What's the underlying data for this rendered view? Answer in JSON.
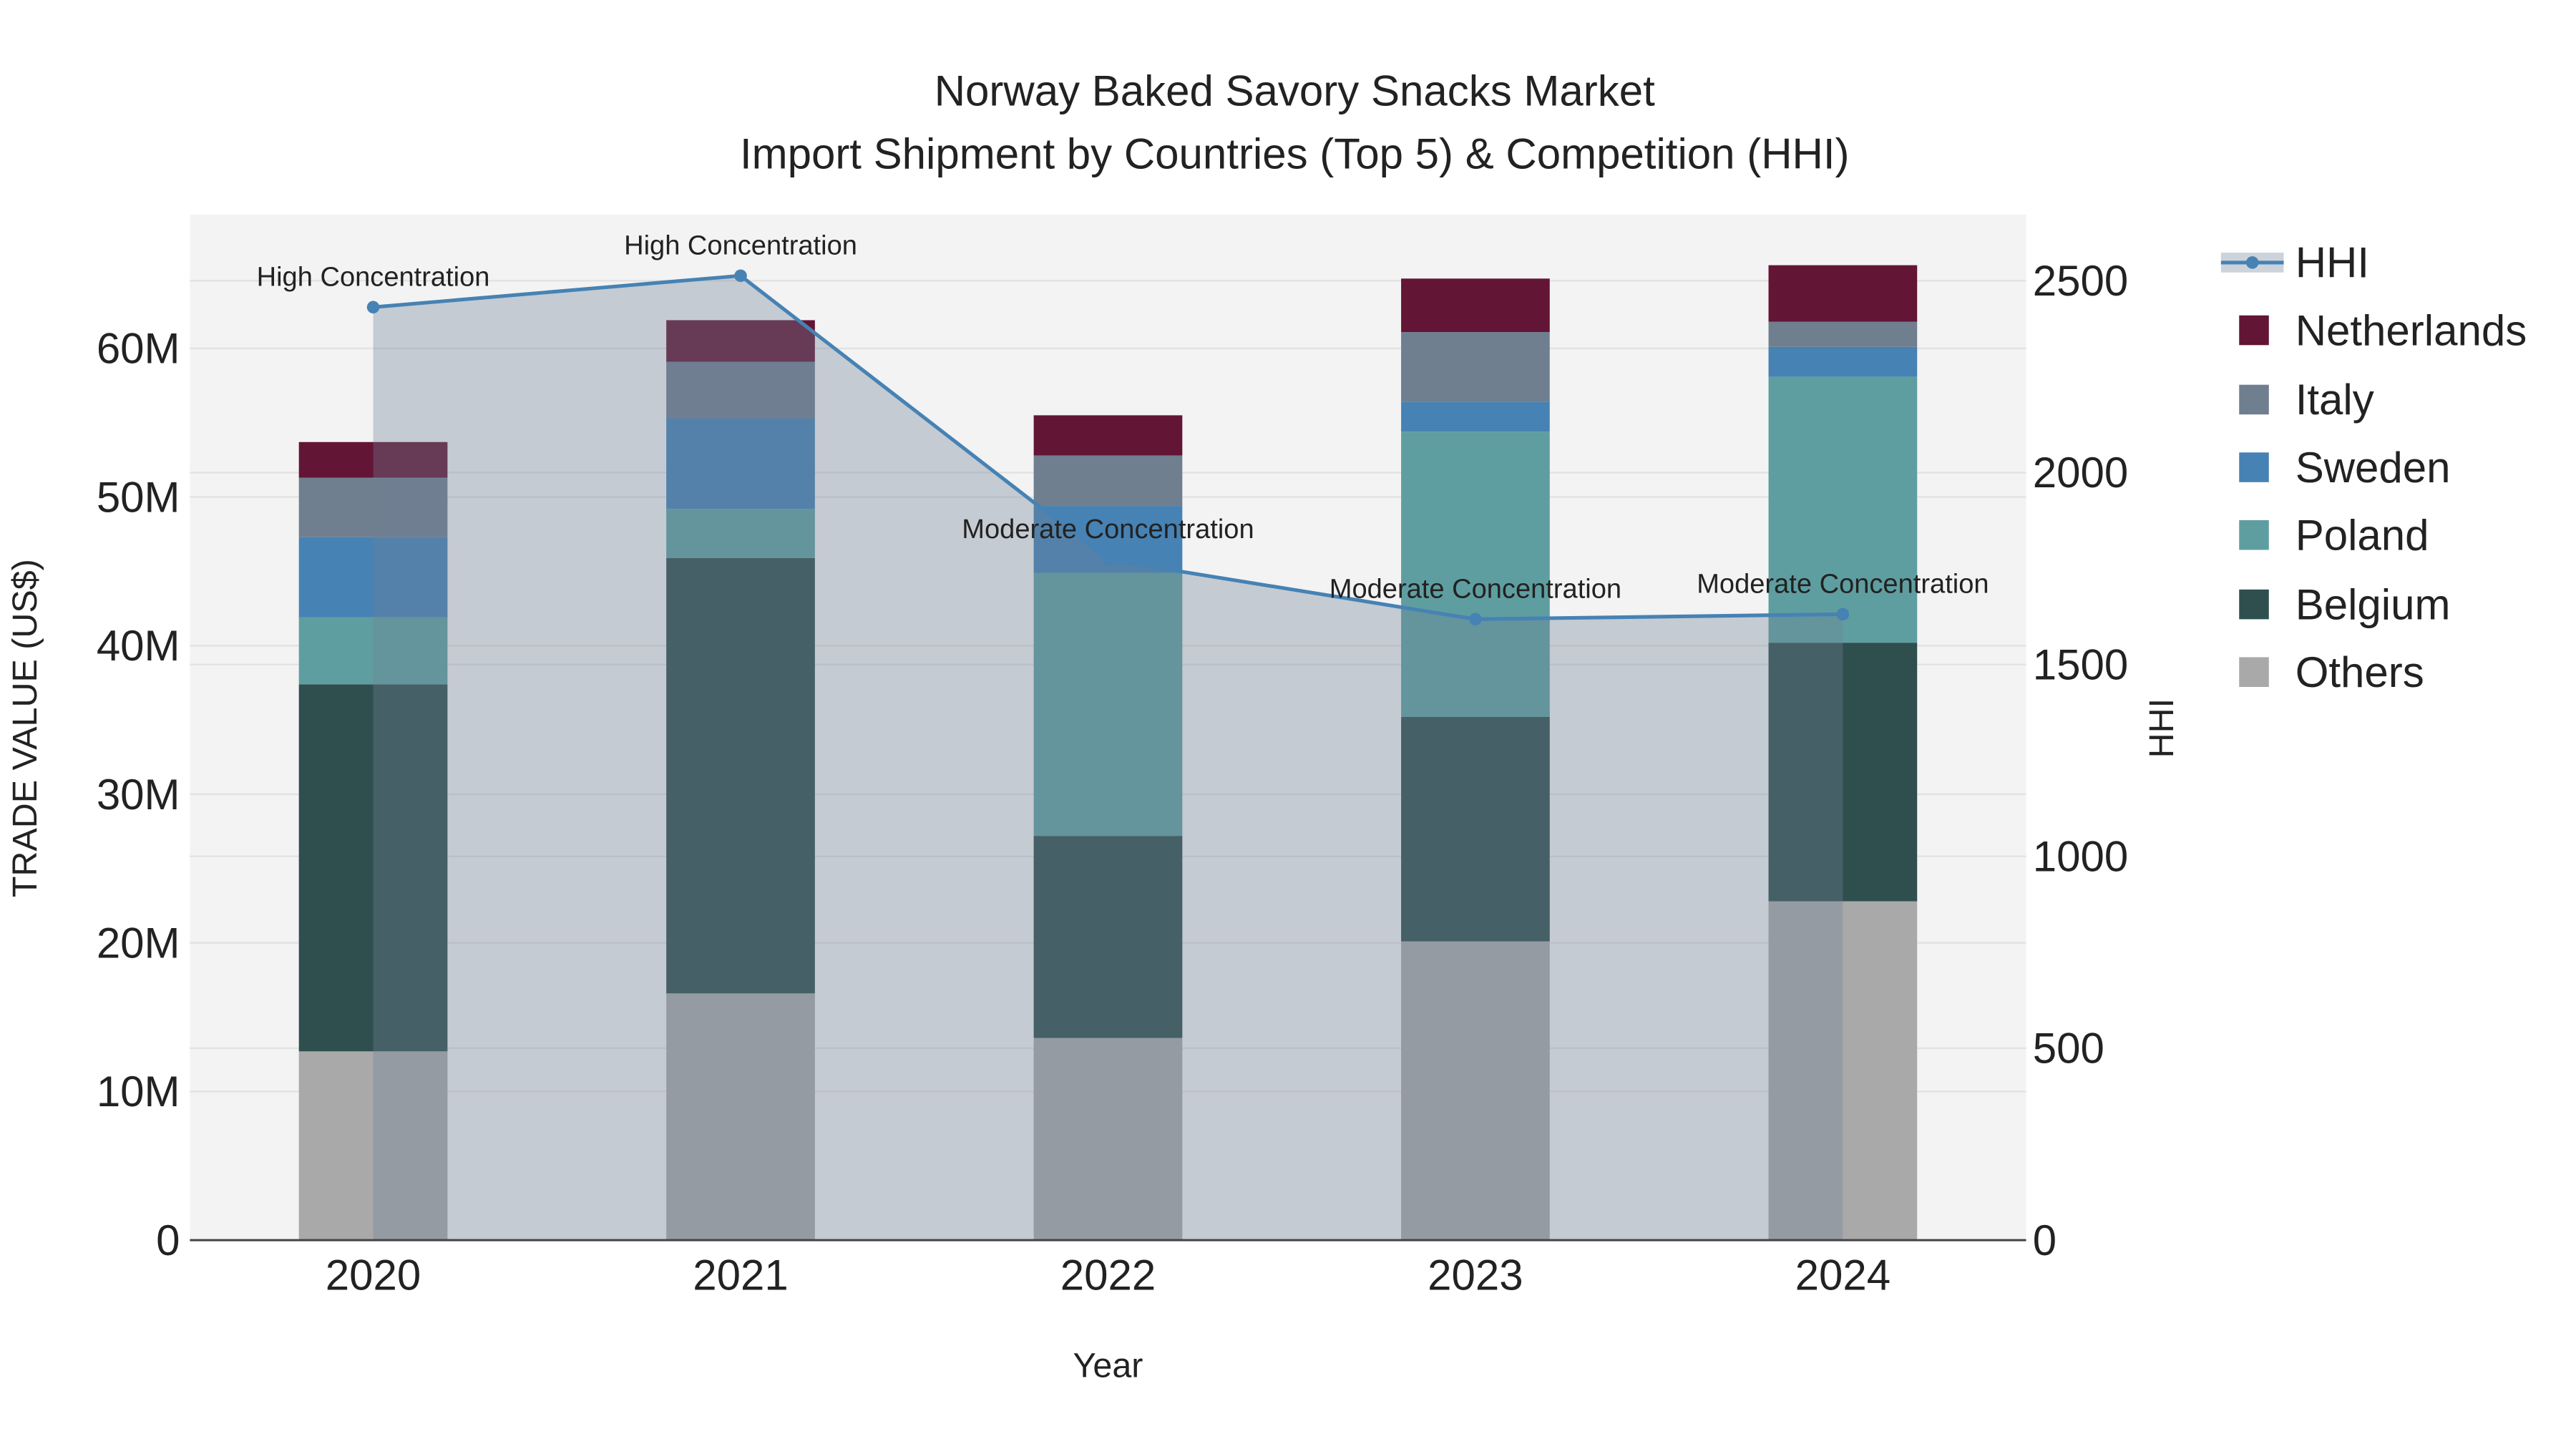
{
  "chart_data": {
    "type": "bar",
    "title": "Norway Baked Savory Snacks Market",
    "subtitle": "Import Shipment by Countries (Top 5) & Competition (HHI)",
    "xlabel": "Year",
    "ylabel": "TRADE VALUE (US$)",
    "y2label": "HHI",
    "categories": [
      "2020",
      "2021",
      "2022",
      "2023",
      "2024"
    ],
    "ylim": [
      0,
      69
    ],
    "y2lim": [
      0,
      2664
    ],
    "yticks": [
      {
        "v": 0,
        "label": "0"
      },
      {
        "v": 10,
        "label": "10M"
      },
      {
        "v": 20,
        "label": "20M"
      },
      {
        "v": 30,
        "label": "30M"
      },
      {
        "v": 40,
        "label": "40M"
      },
      {
        "v": 50,
        "label": "50M"
      },
      {
        "v": 60,
        "label": "60M"
      }
    ],
    "y2ticks": [
      {
        "v": 0,
        "label": "0"
      },
      {
        "v": 500,
        "label": "500"
      },
      {
        "v": 1000,
        "label": "1000"
      },
      {
        "v": 1500,
        "label": "1500"
      },
      {
        "v": 2000,
        "label": "2000"
      },
      {
        "v": 2500,
        "label": "2500"
      }
    ],
    "units": "million US$",
    "stacked": true,
    "series": [
      {
        "name": "Others",
        "color": "#a9a9a9",
        "values": [
          12.7,
          16.6,
          13.6,
          20.1,
          22.8
        ]
      },
      {
        "name": "Belgium",
        "color": "#2f4f4f",
        "values": [
          24.7,
          29.3,
          13.6,
          15.1,
          17.4
        ]
      },
      {
        "name": "Poland",
        "color": "#5f9ea0",
        "values": [
          4.5,
          3.3,
          17.7,
          19.2,
          17.9
        ]
      },
      {
        "name": "Sweden",
        "color": "#4682b4",
        "values": [
          5.4,
          6.1,
          4.5,
          2.0,
          2.0
        ]
      },
      {
        "name": "Italy",
        "color": "#6f7f8f",
        "values": [
          4.0,
          3.8,
          3.4,
          4.7,
          1.7
        ]
      },
      {
        "name": "Netherlands",
        "color": "#631535",
        "values": [
          2.4,
          2.8,
          2.7,
          3.6,
          3.8
        ]
      }
    ],
    "line": {
      "name": "HHI",
      "color": "#4682b4",
      "values": [
        2431,
        2513,
        1773,
        1618,
        1631
      ],
      "annotations": [
        "High Concentration",
        "High Concentration",
        "Moderate Concentration",
        "Moderate Concentration",
        "Moderate Concentration"
      ]
    },
    "legend": {
      "placement": "right",
      "order": [
        "HHI",
        "Netherlands",
        "Italy",
        "Sweden",
        "Poland",
        "Belgium",
        "Others"
      ]
    },
    "grid": true
  }
}
